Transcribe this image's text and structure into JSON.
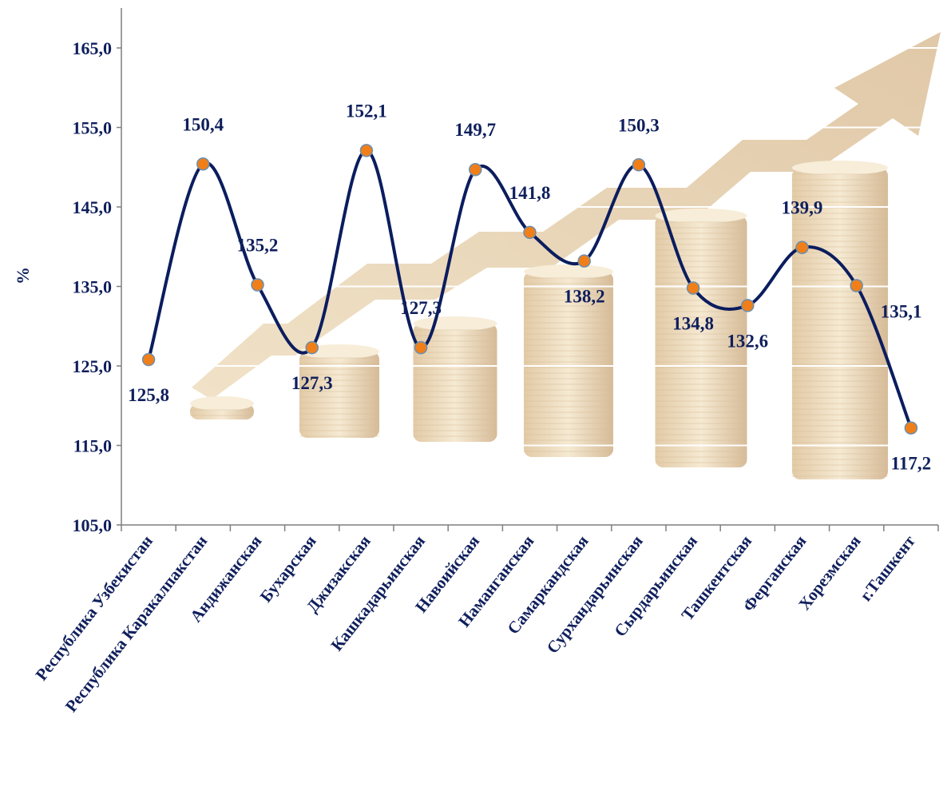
{
  "chart_data": {
    "type": "line",
    "title": "",
    "xlabel": "",
    "ylabel": "%",
    "ylim": [
      105,
      165
    ],
    "y_ticks": [
      "105,0",
      "115,0",
      "125,0",
      "135,0",
      "145,0",
      "155,0",
      "165,0"
    ],
    "y_tick_values": [
      105,
      115,
      125,
      135,
      145,
      155,
      165
    ],
    "grid": true,
    "legend": "none",
    "smooth": true,
    "categories": [
      "Республика Узбекистан",
      "Республика Каракалпакстан",
      "Андижанская",
      "Бухарская",
      "Джизакская",
      "Кашкадарьинская",
      "Навоийская",
      "Наманганская",
      "Самаркандская",
      "Сурхандарьинская",
      "Сырдарьинская",
      "Ташкентская",
      "Ферганская",
      "Хорезмская",
      "г.Ташкент"
    ],
    "values": [
      125.8,
      150.4,
      135.2,
      127.3,
      152.1,
      127.3,
      149.7,
      141.8,
      138.2,
      150.3,
      134.8,
      132.6,
      139.9,
      135.1,
      117.2
    ],
    "value_labels": [
      "125,8",
      "150,4",
      "135,2",
      "127,3",
      "152,1",
      "127,3",
      "149,7",
      "141,8",
      "138,2",
      "150,3",
      "134,8",
      "132,6",
      "139,9",
      "135,1",
      "117,2"
    ],
    "label_positions": [
      "below",
      "above",
      "above",
      "below",
      "above",
      "above",
      "above",
      "above",
      "below",
      "above",
      "below",
      "below",
      "above",
      "right",
      "below"
    ],
    "colors": {
      "line": "#0b1d5e",
      "marker": "#f07f1a",
      "marker_edge": "#6b8fb0",
      "text": "#0f1f5c",
      "axis": "#7f7f7f",
      "grid": "#ffffff",
      "background_art": "#e6cfa4"
    }
  }
}
